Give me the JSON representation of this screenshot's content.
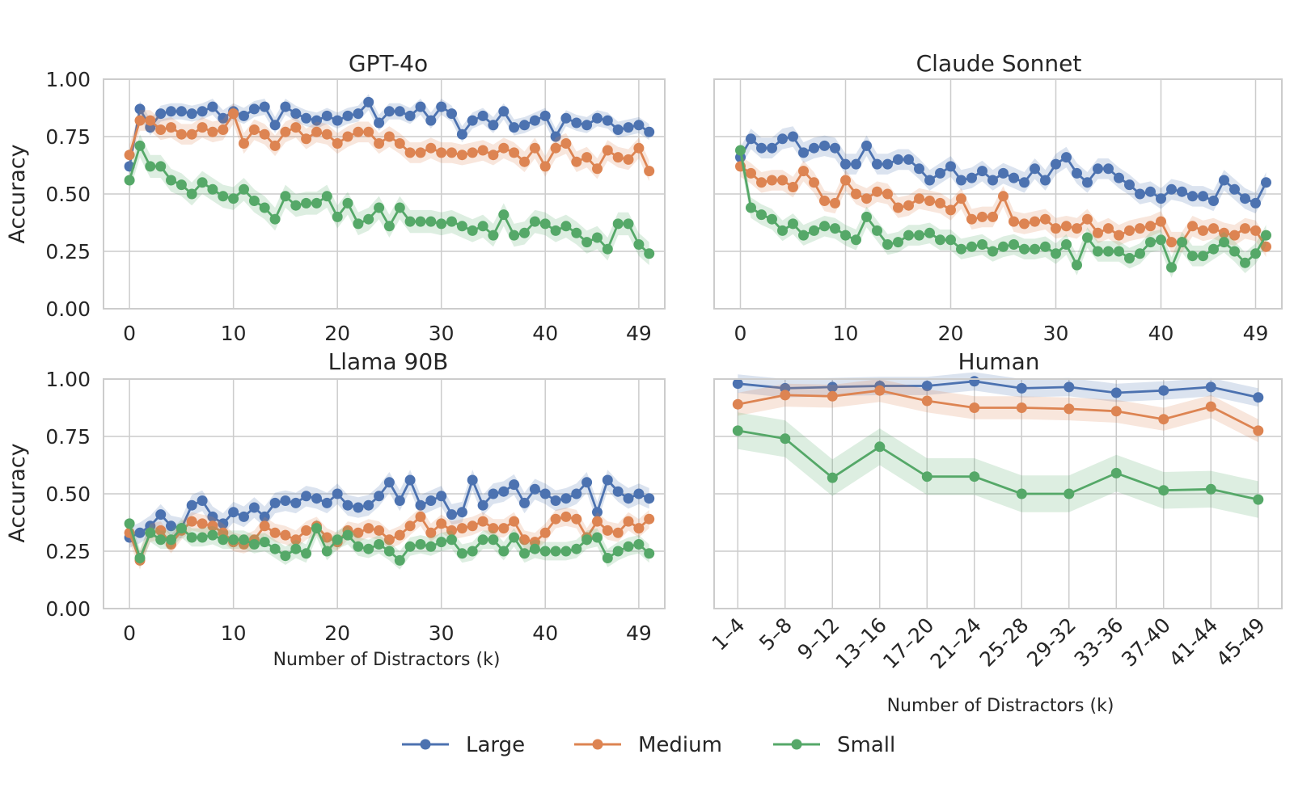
{
  "colors": {
    "Large": "#4c72b0",
    "Medium": "#dd8452",
    "Small": "#55a868",
    "grid": "#cccccc",
    "frame": "#cccccc"
  },
  "legend": [
    {
      "name": "Large",
      "label": "Large"
    },
    {
      "name": "Medium",
      "label": "Medium"
    },
    {
      "name": "Small",
      "label": "Small"
    }
  ],
  "chart_data": [
    {
      "type": "line",
      "title": "GPT-4o",
      "xlabel": "",
      "ylabel": "Accuracy",
      "ylim": [
        0,
        1
      ],
      "xlim": [
        -2.5,
        51.5
      ],
      "xticks": [
        0,
        10,
        20,
        30,
        40,
        49
      ],
      "yticks": [
        "0.00",
        "0.25",
        "0.50",
        "0.75",
        "1.00"
      ],
      "grid": true,
      "x": [
        0,
        1,
        2,
        3,
        4,
        5,
        6,
        7,
        8,
        9,
        10,
        11,
        12,
        13,
        14,
        15,
        16,
        17,
        18,
        19,
        20,
        21,
        22,
        23,
        24,
        25,
        26,
        27,
        28,
        29,
        30,
        31,
        32,
        33,
        34,
        35,
        36,
        37,
        38,
        39,
        40,
        41,
        42,
        43,
        44,
        45,
        46,
        47,
        48,
        49,
        50
      ],
      "series": [
        {
          "name": "Large",
          "band": 0.035,
          "values": [
            0.62,
            0.87,
            0.79,
            0.85,
            0.86,
            0.86,
            0.85,
            0.86,
            0.88,
            0.83,
            0.86,
            0.84,
            0.87,
            0.88,
            0.8,
            0.88,
            0.85,
            0.83,
            0.82,
            0.84,
            0.82,
            0.84,
            0.85,
            0.9,
            0.81,
            0.86,
            0.86,
            0.84,
            0.88,
            0.82,
            0.88,
            0.85,
            0.76,
            0.82,
            0.84,
            0.8,
            0.86,
            0.79,
            0.8,
            0.82,
            0.84,
            0.75,
            0.83,
            0.81,
            0.8,
            0.83,
            0.82,
            0.78,
            0.79,
            0.8,
            0.77
          ]
        },
        {
          "name": "Medium",
          "band": 0.045,
          "values": [
            0.67,
            0.82,
            0.82,
            0.78,
            0.79,
            0.76,
            0.76,
            0.79,
            0.77,
            0.78,
            0.85,
            0.72,
            0.78,
            0.76,
            0.71,
            0.77,
            0.79,
            0.74,
            0.77,
            0.76,
            0.72,
            0.75,
            0.77,
            0.77,
            0.72,
            0.75,
            0.72,
            0.68,
            0.68,
            0.7,
            0.68,
            0.68,
            0.67,
            0.68,
            0.69,
            0.67,
            0.7,
            0.68,
            0.64,
            0.7,
            0.62,
            0.7,
            0.72,
            0.64,
            0.66,
            0.61,
            0.69,
            0.66,
            0.65,
            0.7,
            0.6
          ]
        },
        {
          "name": "Small",
          "band": 0.05,
          "values": [
            0.56,
            0.71,
            0.62,
            0.62,
            0.56,
            0.54,
            0.5,
            0.55,
            0.52,
            0.49,
            0.48,
            0.52,
            0.47,
            0.44,
            0.39,
            0.49,
            0.45,
            0.46,
            0.46,
            0.49,
            0.4,
            0.46,
            0.37,
            0.39,
            0.44,
            0.36,
            0.44,
            0.38,
            0.38,
            0.38,
            0.37,
            0.38,
            0.36,
            0.34,
            0.36,
            0.32,
            0.41,
            0.32,
            0.33,
            0.38,
            0.37,
            0.34,
            0.36,
            0.33,
            0.29,
            0.31,
            0.26,
            0.37,
            0.37,
            0.28,
            0.24
          ]
        }
      ]
    },
    {
      "type": "line",
      "title": "Claude Sonnet",
      "xlabel": "",
      "ylabel": "",
      "ylim": [
        0,
        1
      ],
      "xlim": [
        -2.5,
        51.5
      ],
      "xticks": [
        0,
        10,
        20,
        30,
        40,
        49
      ],
      "yticks": [],
      "grid": true,
      "x": [
        0,
        1,
        2,
        3,
        4,
        5,
        6,
        7,
        8,
        9,
        10,
        11,
        12,
        13,
        14,
        15,
        16,
        17,
        18,
        19,
        20,
        21,
        22,
        23,
        24,
        25,
        26,
        27,
        28,
        29,
        30,
        31,
        32,
        33,
        34,
        35,
        36,
        37,
        38,
        39,
        40,
        41,
        42,
        43,
        44,
        45,
        46,
        47,
        48,
        49,
        50
      ],
      "series": [
        {
          "name": "Large",
          "band": 0.045,
          "values": [
            0.66,
            0.74,
            0.7,
            0.7,
            0.74,
            0.75,
            0.68,
            0.7,
            0.71,
            0.7,
            0.63,
            0.63,
            0.71,
            0.63,
            0.63,
            0.65,
            0.65,
            0.61,
            0.56,
            0.59,
            0.62,
            0.56,
            0.57,
            0.6,
            0.56,
            0.59,
            0.57,
            0.55,
            0.61,
            0.56,
            0.63,
            0.66,
            0.59,
            0.55,
            0.61,
            0.61,
            0.57,
            0.54,
            0.5,
            0.51,
            0.48,
            0.52,
            0.51,
            0.49,
            0.49,
            0.47,
            0.56,
            0.52,
            0.48,
            0.46,
            0.55
          ]
        },
        {
          "name": "Medium",
          "band": 0.045,
          "values": [
            0.62,
            0.59,
            0.55,
            0.56,
            0.56,
            0.53,
            0.6,
            0.55,
            0.47,
            0.46,
            0.56,
            0.5,
            0.48,
            0.51,
            0.5,
            0.44,
            0.45,
            0.48,
            0.47,
            0.46,
            0.43,
            0.48,
            0.39,
            0.4,
            0.4,
            0.49,
            0.38,
            0.37,
            0.38,
            0.39,
            0.35,
            0.36,
            0.35,
            0.39,
            0.33,
            0.35,
            0.32,
            0.34,
            0.35,
            0.36,
            0.38,
            0.29,
            0.29,
            0.36,
            0.34,
            0.35,
            0.33,
            0.32,
            0.35,
            0.34,
            0.27
          ]
        },
        {
          "name": "Small",
          "band": 0.045,
          "values": [
            0.69,
            0.44,
            0.41,
            0.39,
            0.34,
            0.37,
            0.32,
            0.34,
            0.36,
            0.35,
            0.32,
            0.3,
            0.4,
            0.34,
            0.28,
            0.29,
            0.32,
            0.32,
            0.33,
            0.3,
            0.3,
            0.26,
            0.27,
            0.28,
            0.25,
            0.27,
            0.28,
            0.26,
            0.26,
            0.27,
            0.24,
            0.28,
            0.19,
            0.31,
            0.25,
            0.25,
            0.25,
            0.22,
            0.24,
            0.29,
            0.3,
            0.18,
            0.29,
            0.23,
            0.23,
            0.26,
            0.29,
            0.25,
            0.2,
            0.24,
            0.32
          ]
        }
      ]
    },
    {
      "type": "line",
      "title": "Llama 90B",
      "xlabel": "Number of Distractors (k)",
      "ylabel": "Accuracy",
      "ylim": [
        0,
        1
      ],
      "xlim": [
        -2.5,
        51.5
      ],
      "xticks": [
        0,
        10,
        20,
        30,
        40,
        49
      ],
      "yticks": [
        "0.00",
        "0.25",
        "0.50",
        "0.75",
        "1.00"
      ],
      "grid": true,
      "x": [
        0,
        1,
        2,
        3,
        4,
        5,
        6,
        7,
        8,
        9,
        10,
        11,
        12,
        13,
        14,
        15,
        16,
        17,
        18,
        19,
        20,
        21,
        22,
        23,
        24,
        25,
        26,
        27,
        28,
        29,
        30,
        31,
        32,
        33,
        34,
        35,
        36,
        37,
        38,
        39,
        40,
        41,
        42,
        43,
        44,
        45,
        46,
        47,
        48,
        49,
        50
      ],
      "series": [
        {
          "name": "Large",
          "band": 0.045,
          "values": [
            0.31,
            0.33,
            0.36,
            0.41,
            0.36,
            0.35,
            0.45,
            0.47,
            0.4,
            0.37,
            0.42,
            0.4,
            0.44,
            0.4,
            0.46,
            0.47,
            0.46,
            0.49,
            0.48,
            0.46,
            0.5,
            0.45,
            0.44,
            0.45,
            0.49,
            0.55,
            0.47,
            0.56,
            0.45,
            0.47,
            0.49,
            0.41,
            0.42,
            0.56,
            0.45,
            0.5,
            0.51,
            0.54,
            0.46,
            0.52,
            0.5,
            0.47,
            0.48,
            0.5,
            0.55,
            0.42,
            0.56,
            0.51,
            0.48,
            0.5,
            0.48
          ]
        },
        {
          "name": "Medium",
          "band": 0.04,
          "values": [
            0.33,
            0.21,
            0.33,
            0.34,
            0.28,
            0.34,
            0.38,
            0.37,
            0.36,
            0.33,
            0.29,
            0.28,
            0.3,
            0.36,
            0.33,
            0.32,
            0.3,
            0.34,
            0.36,
            0.31,
            0.29,
            0.34,
            0.33,
            0.35,
            0.34,
            0.3,
            0.32,
            0.36,
            0.4,
            0.33,
            0.37,
            0.34,
            0.35,
            0.36,
            0.38,
            0.35,
            0.35,
            0.38,
            0.3,
            0.29,
            0.33,
            0.39,
            0.4,
            0.39,
            0.31,
            0.38,
            0.34,
            0.33,
            0.38,
            0.35,
            0.39
          ]
        },
        {
          "name": "Small",
          "band": 0.04,
          "values": [
            0.37,
            0.22,
            0.33,
            0.3,
            0.3,
            0.35,
            0.31,
            0.31,
            0.32,
            0.3,
            0.3,
            0.3,
            0.28,
            0.29,
            0.26,
            0.23,
            0.26,
            0.24,
            0.35,
            0.25,
            0.3,
            0.32,
            0.27,
            0.26,
            0.28,
            0.25,
            0.21,
            0.27,
            0.28,
            0.27,
            0.29,
            0.3,
            0.24,
            0.25,
            0.3,
            0.3,
            0.25,
            0.31,
            0.24,
            0.26,
            0.25,
            0.25,
            0.25,
            0.26,
            0.3,
            0.31,
            0.22,
            0.25,
            0.27,
            0.28,
            0.24
          ]
        }
      ]
    },
    {
      "type": "line",
      "title": "Human",
      "xlabel": "Number of Distractors (k)",
      "ylabel": "",
      "ylim": [
        0,
        1
      ],
      "xlim": [
        -0.5,
        11.5
      ],
      "categories": [
        "1–4",
        "5–8",
        "9–12",
        "13–16",
        "17–20",
        "21–24",
        "25-28",
        "29-32",
        "33-36",
        "37-40",
        "41-44",
        "45-49"
      ],
      "yticks": [],
      "grid": true,
      "series": [
        {
          "name": "Large",
          "band": 0.04,
          "values": [
            0.98,
            0.96,
            0.965,
            0.97,
            0.97,
            0.99,
            0.96,
            0.965,
            0.94,
            0.95,
            0.965,
            0.92
          ]
        },
        {
          "name": "Medium",
          "band": 0.05,
          "values": [
            0.89,
            0.93,
            0.925,
            0.95,
            0.905,
            0.875,
            0.875,
            0.87,
            0.86,
            0.825,
            0.88,
            0.775
          ]
        },
        {
          "name": "Small",
          "band": 0.08,
          "values": [
            0.775,
            0.74,
            0.57,
            0.705,
            0.575,
            0.575,
            0.5,
            0.5,
            0.59,
            0.515,
            0.52,
            0.475
          ]
        }
      ]
    }
  ]
}
